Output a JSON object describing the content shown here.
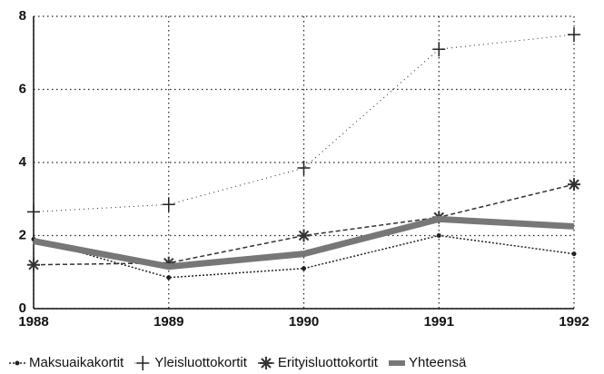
{
  "chart_data": {
    "type": "line",
    "x": [
      1988,
      1989,
      1990,
      1991,
      1992
    ],
    "xlim": [
      1988,
      1992
    ],
    "xticks": [
      1988,
      1989,
      1990,
      1991,
      1992
    ],
    "ylim": [
      0,
      8
    ],
    "yticks": [
      0,
      2,
      4,
      6,
      8
    ],
    "grid": true,
    "legend": "bottom",
    "series": [
      {
        "name": "Maksuaikakortit",
        "color": "#222222",
        "line_style": "dotted",
        "marker": "dot",
        "line_width": 1.5,
        "values": [
          1.9,
          0.85,
          1.1,
          2.0,
          1.5
        ]
      },
      {
        "name": "Yleisluottokortit",
        "color": "#222222",
        "line_style": "sparse",
        "marker": "plus",
        "line_width": 1,
        "values": [
          2.65,
          2.85,
          3.85,
          7.1,
          7.5
        ]
      },
      {
        "name": "Erityisluottokortit",
        "color": "#333333",
        "line_style": "dashed",
        "marker": "star",
        "line_width": 1.5,
        "values": [
          1.2,
          1.25,
          2.0,
          2.5,
          3.4
        ]
      },
      {
        "name": "Yhteensä",
        "color": "#777777",
        "line_style": "solid",
        "marker": "none",
        "line_width": 7,
        "values": [
          1.85,
          1.15,
          1.5,
          2.45,
          2.25
        ]
      }
    ]
  }
}
